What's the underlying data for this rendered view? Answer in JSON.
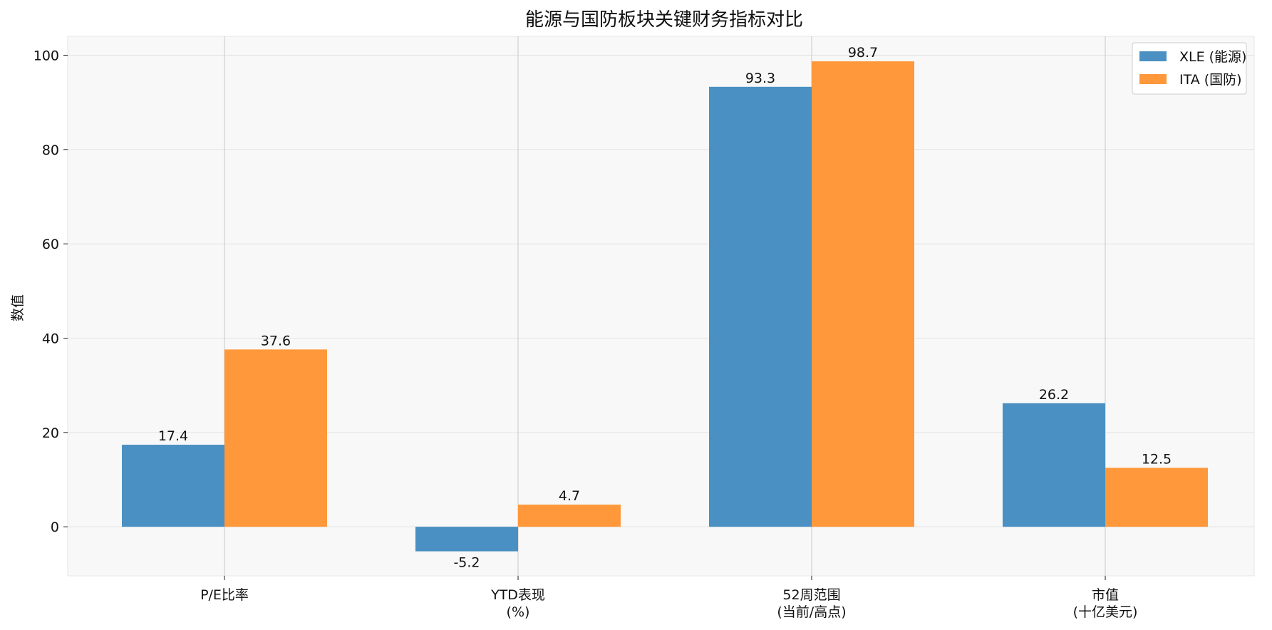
{
  "chart_data": {
    "type": "bar",
    "title": "能源与国防板块关键财务指标对比",
    "ylabel": "数值",
    "xlabel": "",
    "categories": [
      [
        "P/E比率"
      ],
      [
        "YTD表现",
        "(%)"
      ],
      [
        "52周范围",
        "(当前/高点)"
      ],
      [
        "市值",
        "(十亿美元)"
      ]
    ],
    "series": [
      {
        "name": "XLE (能源)",
        "values": [
          17.4,
          -5.2,
          93.3,
          26.2
        ],
        "color": "#4a90c2"
      },
      {
        "name": "ITA (国防)",
        "values": [
          37.6,
          4.7,
          98.7,
          12.5
        ],
        "color": "#ff983a"
      }
    ],
    "ylim": [
      -10.4,
      104
    ],
    "yticks": [
      0,
      20,
      40,
      60,
      80,
      100
    ],
    "grid": true,
    "legend_position": "top-right",
    "background_color": "#f8f8f8"
  }
}
